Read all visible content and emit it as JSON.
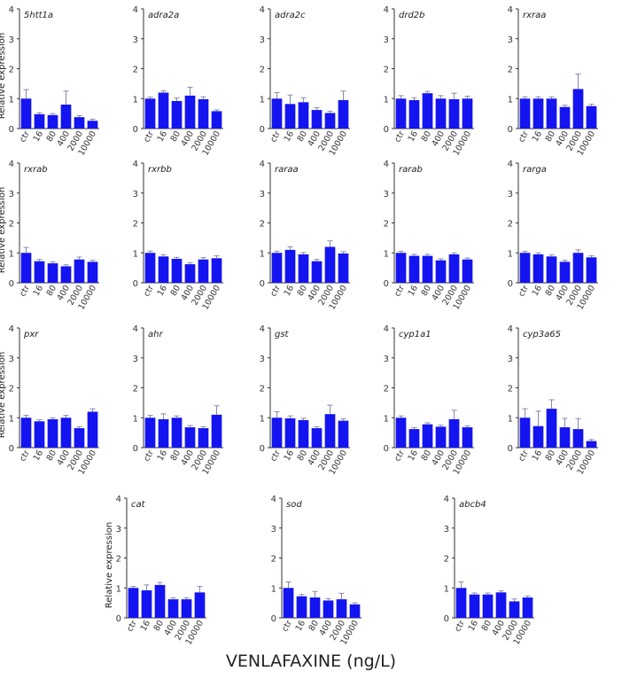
{
  "figure": {
    "xlabel": "VENLAFAXINE (ng/L)",
    "ylabel": "Relative expression",
    "bar_color": "#1414f0",
    "error_color": "#8888aa",
    "axis_color": "#333333"
  },
  "chart_data": [
    {
      "type": "bar",
      "title": "5htt1a",
      "categories": [
        "ctr",
        "16",
        "80",
        "400",
        "2000",
        "10000"
      ],
      "values": [
        1.0,
        0.48,
        0.45,
        0.8,
        0.38,
        0.26
      ],
      "errors": [
        0.3,
        0.05,
        0.05,
        0.45,
        0.05,
        0.05
      ],
      "ylabel": "Relative expression",
      "ylim": [
        0,
        4
      ],
      "yticks": [
        0,
        1,
        2,
        3,
        4
      ]
    },
    {
      "type": "bar",
      "title": "adra2a",
      "categories": [
        "ctr",
        "16",
        "80",
        "400",
        "2000",
        "10000"
      ],
      "values": [
        1.0,
        1.2,
        0.92,
        1.1,
        0.98,
        0.58
      ],
      "errors": [
        0.05,
        0.06,
        0.1,
        0.28,
        0.08,
        0.04
      ],
      "ylabel": "",
      "ylim": [
        0,
        4
      ],
      "yticks": [
        0,
        1,
        2,
        3,
        4
      ]
    },
    {
      "type": "bar",
      "title": "adra2c",
      "categories": [
        "ctr",
        "16",
        "80",
        "400",
        "2000",
        "10000"
      ],
      "values": [
        1.0,
        0.82,
        0.88,
        0.62,
        0.52,
        0.95
      ],
      "errors": [
        0.2,
        0.3,
        0.15,
        0.08,
        0.06,
        0.3
      ],
      "ylabel": "",
      "ylim": [
        0,
        4
      ],
      "yticks": [
        0,
        1,
        2,
        3,
        4
      ]
    },
    {
      "type": "bar",
      "title": "drd2b",
      "categories": [
        "ctr",
        "16",
        "80",
        "400",
        "2000",
        "10000"
      ],
      "values": [
        1.0,
        0.95,
        1.18,
        1.0,
        0.98,
        1.0
      ],
      "errors": [
        0.1,
        0.08,
        0.06,
        0.1,
        0.2,
        0.08
      ],
      "ylabel": "",
      "ylim": [
        0,
        4
      ],
      "yticks": [
        0,
        1,
        2,
        3,
        4
      ]
    },
    {
      "type": "bar",
      "title": "rxraa",
      "categories": [
        "ctr",
        "16",
        "80",
        "400",
        "2000",
        "10000"
      ],
      "values": [
        1.0,
        1.0,
        1.0,
        0.72,
        1.32,
        0.75
      ],
      "errors": [
        0.06,
        0.06,
        0.06,
        0.06,
        0.5,
        0.06
      ],
      "ylabel": "",
      "ylim": [
        0,
        4
      ],
      "yticks": [
        0,
        1,
        2,
        3,
        4
      ]
    },
    {
      "type": "bar",
      "title": "rxrab",
      "categories": [
        "ctr",
        "16",
        "80",
        "400",
        "2000",
        "10000"
      ],
      "values": [
        1.0,
        0.72,
        0.65,
        0.55,
        0.78,
        0.7
      ],
      "errors": [
        0.18,
        0.06,
        0.05,
        0.05,
        0.08,
        0.05
      ],
      "ylabel": "Relative expression",
      "ylim": [
        0,
        4
      ],
      "yticks": [
        0,
        1,
        2,
        3,
        4
      ]
    },
    {
      "type": "bar",
      "title": "rxrbb",
      "categories": [
        "ctr",
        "16",
        "80",
        "400",
        "2000",
        "10000"
      ],
      "values": [
        1.0,
        0.88,
        0.8,
        0.62,
        0.78,
        0.82
      ],
      "errors": [
        0.06,
        0.06,
        0.05,
        0.05,
        0.06,
        0.08
      ],
      "ylabel": "",
      "ylim": [
        0,
        4
      ],
      "yticks": [
        0,
        1,
        2,
        3,
        4
      ]
    },
    {
      "type": "bar",
      "title": "raraa",
      "categories": [
        "ctr",
        "16",
        "80",
        "400",
        "2000",
        "10000"
      ],
      "values": [
        1.0,
        1.1,
        0.95,
        0.72,
        1.2,
        0.98
      ],
      "errors": [
        0.06,
        0.1,
        0.06,
        0.06,
        0.2,
        0.06
      ],
      "ylabel": "",
      "ylim": [
        0,
        4
      ],
      "yticks": [
        0,
        1,
        2,
        3,
        4
      ]
    },
    {
      "type": "bar",
      "title": "rarab",
      "categories": [
        "ctr",
        "16",
        "80",
        "400",
        "2000",
        "10000"
      ],
      "values": [
        1.0,
        0.9,
        0.9,
        0.75,
        0.95,
        0.78
      ],
      "errors": [
        0.05,
        0.05,
        0.05,
        0.05,
        0.05,
        0.05
      ],
      "ylabel": "",
      "ylim": [
        0,
        4
      ],
      "yticks": [
        0,
        1,
        2,
        3,
        4
      ]
    },
    {
      "type": "bar",
      "title": "rarga",
      "categories": [
        "ctr",
        "16",
        "80",
        "400",
        "2000",
        "10000"
      ],
      "values": [
        1.0,
        0.95,
        0.88,
        0.7,
        1.0,
        0.85
      ],
      "errors": [
        0.05,
        0.05,
        0.05,
        0.05,
        0.1,
        0.05
      ],
      "ylabel": "",
      "ylim": [
        0,
        4
      ],
      "yticks": [
        0,
        1,
        2,
        3,
        4
      ]
    },
    {
      "type": "bar",
      "title": "pxr",
      "categories": [
        "ctr",
        "16",
        "80",
        "400",
        "2000",
        "10000"
      ],
      "values": [
        1.0,
        0.88,
        0.95,
        1.0,
        0.65,
        1.2
      ],
      "errors": [
        0.08,
        0.05,
        0.05,
        0.08,
        0.05,
        0.1
      ],
      "ylabel": "Relative expression",
      "ylim": [
        0,
        4
      ],
      "yticks": [
        0,
        1,
        2,
        3,
        4
      ]
    },
    {
      "type": "bar",
      "title": "ahr",
      "categories": [
        "ctr",
        "16",
        "80",
        "400",
        "2000",
        "10000"
      ],
      "values": [
        1.0,
        0.95,
        1.0,
        0.68,
        0.65,
        1.1
      ],
      "errors": [
        0.08,
        0.18,
        0.06,
        0.06,
        0.05,
        0.3
      ],
      "ylabel": "",
      "ylim": [
        0,
        4
      ],
      "yticks": [
        0,
        1,
        2,
        3,
        4
      ]
    },
    {
      "type": "bar",
      "title": "gst",
      "categories": [
        "ctr",
        "16",
        "80",
        "400",
        "2000",
        "10000"
      ],
      "values": [
        1.0,
        0.98,
        0.92,
        0.65,
        1.12,
        0.9
      ],
      "errors": [
        0.2,
        0.08,
        0.06,
        0.05,
        0.3,
        0.06
      ],
      "ylabel": "",
      "ylim": [
        0,
        4
      ],
      "yticks": [
        0,
        1,
        2,
        3,
        4
      ]
    },
    {
      "type": "bar",
      "title": "cyp1a1",
      "categories": [
        "ctr",
        "16",
        "80",
        "400",
        "2000",
        "10000"
      ],
      "values": [
        1.0,
        0.62,
        0.78,
        0.7,
        0.95,
        0.68
      ],
      "errors": [
        0.06,
        0.05,
        0.05,
        0.05,
        0.3,
        0.05
      ],
      "ylabel": "",
      "ylim": [
        0,
        4
      ],
      "yticks": [
        0,
        1,
        2,
        3,
        4
      ]
    },
    {
      "type": "bar",
      "title": "cyp3a65",
      "categories": [
        "ctr",
        "16",
        "80",
        "400",
        "2000",
        "10000"
      ],
      "values": [
        1.0,
        0.72,
        1.3,
        0.68,
        0.62,
        0.22
      ],
      "errors": [
        0.3,
        0.5,
        0.3,
        0.3,
        0.35,
        0.05
      ],
      "ylabel": "",
      "ylim": [
        0,
        4
      ],
      "yticks": [
        0,
        1,
        2,
        3,
        4
      ]
    },
    {
      "type": "bar",
      "title": "cat",
      "categories": [
        "ctr",
        "16",
        "80",
        "400",
        "2000",
        "10000"
      ],
      "values": [
        1.0,
        0.92,
        1.1,
        0.62,
        0.62,
        0.85
      ],
      "errors": [
        0.05,
        0.18,
        0.08,
        0.05,
        0.05,
        0.2
      ],
      "ylabel": "Relative expression",
      "ylim": [
        0,
        4
      ],
      "yticks": [
        0,
        1,
        2,
        3,
        4
      ]
    },
    {
      "type": "bar",
      "title": "sod",
      "categories": [
        "ctr",
        "16",
        "80",
        "400",
        "2000",
        "10000"
      ],
      "values": [
        1.0,
        0.72,
        0.68,
        0.58,
        0.62,
        0.45
      ],
      "errors": [
        0.2,
        0.06,
        0.2,
        0.06,
        0.2,
        0.05
      ],
      "ylabel": "",
      "ylim": [
        0,
        4
      ],
      "yticks": [
        0,
        1,
        2,
        3,
        4
      ]
    },
    {
      "type": "bar",
      "title": "abcb4",
      "categories": [
        "ctr",
        "16",
        "80",
        "400",
        "2000",
        "10000"
      ],
      "values": [
        1.0,
        0.78,
        0.78,
        0.85,
        0.55,
        0.68
      ],
      "errors": [
        0.2,
        0.05,
        0.05,
        0.05,
        0.08,
        0.05
      ],
      "ylabel": "",
      "ylim": [
        0,
        4
      ],
      "yticks": [
        0,
        1,
        2,
        3,
        4
      ]
    }
  ]
}
